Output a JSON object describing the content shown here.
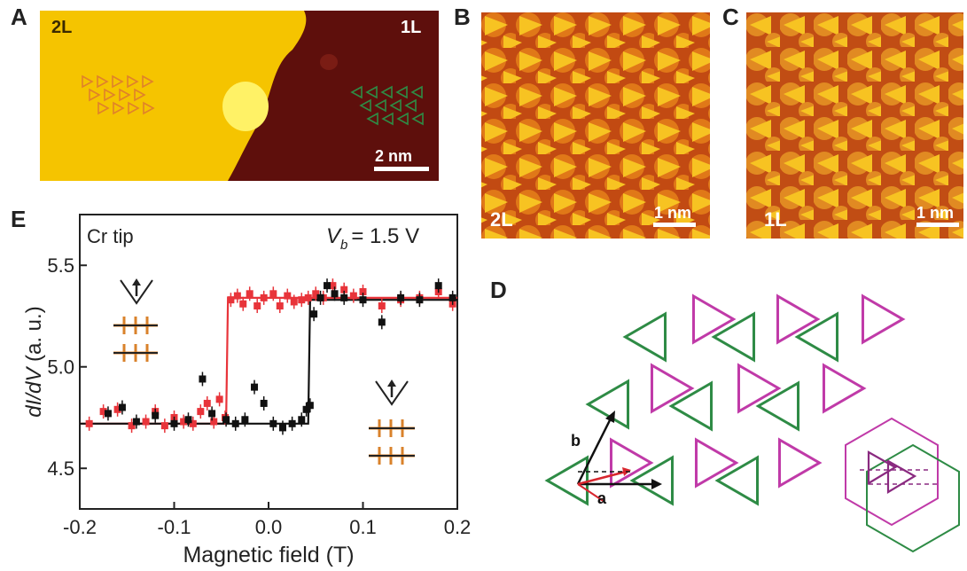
{
  "panels": {
    "A": {
      "letter": "A",
      "left_label": "2L",
      "right_label": "1L",
      "scale": "2 nm"
    },
    "B": {
      "letter": "B",
      "layer": "2L",
      "scale": "1 nm"
    },
    "C": {
      "letter": "C",
      "layer": "1L",
      "scale": "1 nm"
    },
    "D": {
      "letter": "D",
      "vec_a": "a",
      "vec_b": "b"
    },
    "E": {
      "letter": "E",
      "tip": "Cr tip",
      "bias_prefix": "V",
      "bias_sub": "b",
      "bias_value": "= 1.5 V"
    }
  },
  "colors": {
    "stm_bright": "#f5c400",
    "stm_dark": "#5e0f0c",
    "red_series": "#e8343a",
    "black_series": "#111111",
    "green_triangle": "#2e8b45",
    "magenta_triangle": "#c03aa8",
    "orange_lattice": "#d9822b"
  },
  "chart_data": {
    "type": "scatter",
    "xlabel": "Magnetic field (T)",
    "ylabel": "dI/dV (a. u.)",
    "xlim": [
      -0.2,
      0.2
    ],
    "ylim": [
      4.3,
      5.75
    ],
    "xticks": [
      "-0.2",
      "-0.1",
      "0.0",
      "0.1",
      "0.2"
    ],
    "yticks": [
      "4.5",
      "5.0",
      "5.5"
    ],
    "series": [
      {
        "color": "red",
        "points": [
          [
            -0.19,
            4.72
          ],
          [
            -0.175,
            4.78
          ],
          [
            -0.16,
            4.79
          ],
          [
            -0.145,
            4.71
          ],
          [
            -0.13,
            4.73
          ],
          [
            -0.12,
            4.78
          ],
          [
            -0.11,
            4.71
          ],
          [
            -0.1,
            4.75
          ],
          [
            -0.09,
            4.73
          ],
          [
            -0.08,
            4.72
          ],
          [
            -0.072,
            4.78
          ],
          [
            -0.065,
            4.82
          ],
          [
            -0.058,
            4.73
          ],
          [
            -0.052,
            4.84
          ],
          [
            -0.046,
            4.75
          ],
          [
            -0.04,
            5.33
          ],
          [
            -0.033,
            5.35
          ],
          [
            -0.027,
            5.31
          ],
          [
            -0.02,
            5.36
          ],
          [
            -0.012,
            5.3
          ],
          [
            -0.005,
            5.34
          ],
          [
            0.005,
            5.36
          ],
          [
            0.012,
            5.3
          ],
          [
            0.02,
            5.35
          ],
          [
            0.027,
            5.32
          ],
          [
            0.035,
            5.33
          ],
          [
            0.042,
            5.34
          ],
          [
            0.05,
            5.36
          ],
          [
            0.058,
            5.34
          ],
          [
            0.068,
            5.4
          ],
          [
            0.08,
            5.38
          ],
          [
            0.09,
            5.35
          ],
          [
            0.1,
            5.37
          ],
          [
            0.12,
            5.3
          ],
          [
            0.14,
            5.33
          ],
          [
            0.16,
            5.34
          ],
          [
            0.18,
            5.37
          ],
          [
            0.195,
            5.31
          ]
        ],
        "fit": [
          [
            -0.2,
            4.72
          ],
          [
            -0.045,
            4.72
          ],
          [
            -0.043,
            5.34
          ],
          [
            0.2,
            5.34
          ]
        ]
      },
      {
        "color": "black",
        "points": [
          [
            -0.17,
            4.77
          ],
          [
            -0.155,
            4.8
          ],
          [
            -0.14,
            4.73
          ],
          [
            -0.12,
            4.76
          ],
          [
            -0.1,
            4.72
          ],
          [
            -0.085,
            4.74
          ],
          [
            -0.07,
            4.94
          ],
          [
            -0.06,
            4.77
          ],
          [
            -0.045,
            4.74
          ],
          [
            -0.035,
            4.72
          ],
          [
            -0.025,
            4.74
          ],
          [
            -0.015,
            4.9
          ],
          [
            -0.005,
            4.82
          ],
          [
            0.005,
            4.72
          ],
          [
            0.015,
            4.7
          ],
          [
            0.025,
            4.72
          ],
          [
            0.035,
            4.74
          ],
          [
            0.04,
            4.79
          ],
          [
            0.044,
            4.81
          ],
          [
            0.048,
            5.26
          ],
          [
            0.055,
            5.34
          ],
          [
            0.062,
            5.4
          ],
          [
            0.07,
            5.36
          ],
          [
            0.08,
            5.34
          ],
          [
            0.1,
            5.33
          ],
          [
            0.12,
            5.22
          ],
          [
            0.14,
            5.34
          ],
          [
            0.16,
            5.33
          ],
          [
            0.18,
            5.4
          ],
          [
            0.195,
            5.34
          ]
        ],
        "fit": [
          [
            -0.2,
            4.72
          ],
          [
            0.042,
            4.72
          ],
          [
            0.044,
            5.33
          ],
          [
            0.2,
            5.33
          ]
        ]
      }
    ]
  }
}
